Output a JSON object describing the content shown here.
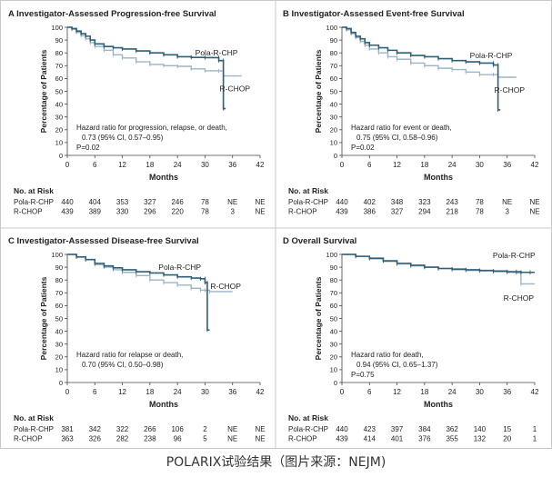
{
  "colors": {
    "pola": "#2e5f79",
    "rchop": "#9cb4c6",
    "axis": "#444444",
    "text": "#222222"
  },
  "xlabel": "Months",
  "ylabel": "Percentage of Patients",
  "risk_heading": "No. at Risk",
  "caption": "POLARIX试验结果（图片来源：NEJM)",
  "chart_data": [
    {
      "type": "line",
      "panel": "A",
      "title": "Investigator-Assessed Progression-free Survival",
      "xlabel": "Months",
      "ylabel": "Percentage of Patients",
      "xlim": [
        0,
        42
      ],
      "ylim": [
        0,
        100
      ],
      "x_ticks": [
        0,
        6,
        12,
        18,
        24,
        30,
        36,
        42
      ],
      "y_ticks": [
        0,
        10,
        20,
        30,
        40,
        50,
        60,
        70,
        80,
        90,
        100
      ],
      "annotation": [
        "Hazard ratio for progression, relapse, or death,",
        "0.73 (95% CI, 0.57–0.95)",
        "P=0.02"
      ],
      "series": [
        {
          "name": "Pola-R-CHP",
          "color": "#2e5f79",
          "points": [
            [
              0,
              100
            ],
            [
              1,
              99
            ],
            [
              2,
              97
            ],
            [
              3,
              95
            ],
            [
              4,
              93
            ],
            [
              5,
              90
            ],
            [
              6,
              87
            ],
            [
              8,
              85
            ],
            [
              10,
              84
            ],
            [
              12,
              83
            ],
            [
              15,
              81.5
            ],
            [
              18,
              80
            ],
            [
              21,
              78.5
            ],
            [
              24,
              77
            ],
            [
              27,
              76.5
            ],
            [
              30,
              76.3
            ],
            [
              33,
              76.3
            ],
            [
              33,
              74
            ],
            [
              34,
              74
            ],
            [
              34,
              36.5
            ],
            [
              34.5,
              36.5
            ]
          ]
        },
        {
          "name": "R-CHOP",
          "color": "#9cb4c6",
          "points": [
            [
              0,
              100
            ],
            [
              1,
              98.5
            ],
            [
              2,
              96
            ],
            [
              3,
              93.5
            ],
            [
              4,
              91
            ],
            [
              5,
              88
            ],
            [
              6,
              85
            ],
            [
              8,
              82
            ],
            [
              10,
              78.5
            ],
            [
              12,
              76
            ],
            [
              15,
              73
            ],
            [
              18,
              71
            ],
            [
              21,
              70
            ],
            [
              24,
              69.5
            ],
            [
              27,
              67.5
            ],
            [
              30,
              66
            ],
            [
              33,
              66
            ],
            [
              34,
              62
            ],
            [
              38,
              62
            ]
          ]
        }
      ],
      "line_labels": [
        {
          "text": "Pola-R-CHP",
          "x": 32.5,
          "y": 78
        },
        {
          "text": "R-CHOP",
          "x": 36.5,
          "y": 50
        }
      ],
      "risk_table": [
        {
          "label": "Pola-R-CHP",
          "values": [
            "440",
            "404",
            "353",
            "327",
            "246",
            "78",
            "NE",
            "NE"
          ]
        },
        {
          "label": "R-CHOP",
          "values": [
            "439",
            "389",
            "330",
            "296",
            "220",
            "78",
            "3",
            "NE"
          ]
        }
      ]
    },
    {
      "type": "line",
      "panel": "B",
      "title": "Investigator-Assessed Event-free Survival",
      "xlabel": "Months",
      "ylabel": "Percentage of Patients",
      "xlim": [
        0,
        42
      ],
      "ylim": [
        0,
        100
      ],
      "x_ticks": [
        0,
        6,
        12,
        18,
        24,
        30,
        36,
        42
      ],
      "y_ticks": [
        0,
        10,
        20,
        30,
        40,
        50,
        60,
        70,
        80,
        90,
        100
      ],
      "annotation": [
        "Hazard ratio for event or death,",
        "0.75 (95% CI, 0.58–0.96)",
        "P=0.02"
      ],
      "series": [
        {
          "name": "Pola-R-CHP",
          "color": "#2e5f79",
          "points": [
            [
              0,
              100
            ],
            [
              1,
              99
            ],
            [
              2,
              96
            ],
            [
              3,
              93
            ],
            [
              4,
              91
            ],
            [
              5,
              88
            ],
            [
              6,
              86
            ],
            [
              8,
              84
            ],
            [
              10,
              82
            ],
            [
              12,
              80
            ],
            [
              15,
              78
            ],
            [
              18,
              77
            ],
            [
              21,
              75.5
            ],
            [
              24,
              74
            ],
            [
              27,
              73
            ],
            [
              30,
              72
            ],
            [
              33,
              72
            ],
            [
              33,
              70.5
            ],
            [
              34,
              70.5
            ],
            [
              34,
              35.5
            ],
            [
              34.5,
              35.5
            ]
          ]
        },
        {
          "name": "R-CHOP",
          "color": "#9cb4c6",
          "points": [
            [
              0,
              100
            ],
            [
              1,
              98
            ],
            [
              2,
              95
            ],
            [
              3,
              92
            ],
            [
              4,
              89
            ],
            [
              5,
              86
            ],
            [
              6,
              83
            ],
            [
              8,
              80
            ],
            [
              10,
              77
            ],
            [
              12,
              75
            ],
            [
              15,
              72
            ],
            [
              18,
              70
            ],
            [
              21,
              68
            ],
            [
              24,
              67
            ],
            [
              27,
              65
            ],
            [
              30,
              63
            ],
            [
              33,
              63
            ],
            [
              34,
              61
            ],
            [
              38,
              61
            ]
          ]
        }
      ],
      "line_labels": [
        {
          "text": "Pola-R-CHP",
          "x": 32.5,
          "y": 76
        },
        {
          "text": "R-CHOP",
          "x": 36.5,
          "y": 49
        }
      ],
      "risk_table": [
        {
          "label": "Pola-R-CHP",
          "values": [
            "440",
            "402",
            "348",
            "323",
            "243",
            "78",
            "NE",
            "NE"
          ]
        },
        {
          "label": "R-CHOP",
          "values": [
            "439",
            "386",
            "327",
            "294",
            "218",
            "78",
            "3",
            "NE"
          ]
        }
      ]
    },
    {
      "type": "line",
      "panel": "C",
      "title": "Investigator-Assessed Disease-free Survival",
      "xlabel": "Months",
      "ylabel": "Percentage of Patients",
      "xlim": [
        0,
        42
      ],
      "ylim": [
        0,
        100
      ],
      "x_ticks": [
        0,
        6,
        12,
        18,
        24,
        30,
        36,
        42
      ],
      "y_ticks": [
        0,
        10,
        20,
        30,
        40,
        50,
        60,
        70,
        80,
        90,
        100
      ],
      "annotation": [
        "Hazard ratio for relapse or death,",
        "0.70 (95% CI, 0.50–0.98)"
      ],
      "series": [
        {
          "name": "Pola-R-CHP",
          "color": "#2e5f79",
          "points": [
            [
              0,
              100
            ],
            [
              2,
              98
            ],
            [
              4,
              96
            ],
            [
              6,
              93
            ],
            [
              8,
              91
            ],
            [
              10,
              89.5
            ],
            [
              12,
              88
            ],
            [
              15,
              86.5
            ],
            [
              18,
              85.5
            ],
            [
              21,
              84
            ],
            [
              24,
              82.5
            ],
            [
              27,
              81.5
            ],
            [
              29,
              81
            ],
            [
              30,
              81
            ],
            [
              30,
              78
            ],
            [
              30.5,
              78
            ],
            [
              30.5,
              41
            ],
            [
              31,
              41
            ]
          ]
        },
        {
          "name": "R-CHOP",
          "color": "#9cb4c6",
          "points": [
            [
              0,
              100
            ],
            [
              2,
              98
            ],
            [
              4,
              96
            ],
            [
              6,
              92
            ],
            [
              8,
              90
            ],
            [
              10,
              88
            ],
            [
              12,
              86
            ],
            [
              15,
              83.5
            ],
            [
              18,
              80
            ],
            [
              21,
              78
            ],
            [
              24,
              76
            ],
            [
              27,
              73.5
            ],
            [
              29,
              72
            ],
            [
              30,
              72
            ],
            [
              31,
              71
            ],
            [
              36,
              71
            ]
          ]
        }
      ],
      "line_labels": [
        {
          "text": "Pola-R-CHP",
          "x": 24.5,
          "y": 88
        },
        {
          "text": "R-CHOP",
          "x": 34.5,
          "y": 73
        }
      ],
      "risk_table": [
        {
          "label": "Pola-R-CHP",
          "values": [
            "381",
            "342",
            "322",
            "266",
            "106",
            "2",
            "NE",
            "NE"
          ]
        },
        {
          "label": "R-CHOP",
          "values": [
            "363",
            "326",
            "282",
            "238",
            "96",
            "5",
            "NE",
            "NE"
          ]
        }
      ]
    },
    {
      "type": "line",
      "panel": "D",
      "title": "Overall Survival",
      "xlabel": "Months",
      "ylabel": "Percentage of Patients",
      "xlim": [
        0,
        42
      ],
      "ylim": [
        0,
        100
      ],
      "x_ticks": [
        0,
        6,
        12,
        18,
        24,
        30,
        36,
        42
      ],
      "y_ticks": [
        0,
        10,
        20,
        30,
        40,
        50,
        60,
        70,
        80,
        90,
        100
      ],
      "annotation": [
        "Hazard ratio for death,",
        "0.94 (95% CI, 0.65–1.37)",
        "P=0.75"
      ],
      "series": [
        {
          "name": "Pola-R-CHP",
          "color": "#2e5f79",
          "points": [
            [
              0,
              100
            ],
            [
              3,
              98.5
            ],
            [
              6,
              97
            ],
            [
              9,
              95
            ],
            [
              12,
              93
            ],
            [
              15,
              91.5
            ],
            [
              18,
              90
            ],
            [
              21,
              89
            ],
            [
              24,
              88.5
            ],
            [
              27,
              88
            ],
            [
              30,
              87.5
            ],
            [
              33,
              87
            ],
            [
              36,
              86.5
            ],
            [
              38,
              86.5
            ],
            [
              39,
              86
            ],
            [
              41,
              86
            ],
            [
              42,
              86
            ]
          ]
        },
        {
          "name": "R-CHOP",
          "color": "#9cb4c6",
          "points": [
            [
              0,
              100
            ],
            [
              3,
              98.5
            ],
            [
              6,
              96.5
            ],
            [
              9,
              94.5
            ],
            [
              12,
              92.5
            ],
            [
              15,
              91
            ],
            [
              18,
              90
            ],
            [
              21,
              89
            ],
            [
              24,
              88
            ],
            [
              27,
              87.5
            ],
            [
              30,
              87
            ],
            [
              33,
              86.5
            ],
            [
              36,
              86
            ],
            [
              38,
              85.5
            ],
            [
              39,
              85.5
            ],
            [
              39,
              77
            ],
            [
              42,
              77
            ]
          ]
        }
      ],
      "line_labels": [
        {
          "text": "Pola-R-CHP",
          "x": 37.5,
          "y": 97
        },
        {
          "text": "R-CHOP",
          "x": 38.5,
          "y": 64
        }
      ],
      "risk_table": [
        {
          "label": "Pola-R-CHP",
          "values": [
            "440",
            "423",
            "397",
            "384",
            "362",
            "140",
            "15",
            "1"
          ]
        },
        {
          "label": "R-CHOP",
          "values": [
            "439",
            "414",
            "401",
            "376",
            "355",
            "132",
            "20",
            "1"
          ]
        }
      ]
    }
  ]
}
